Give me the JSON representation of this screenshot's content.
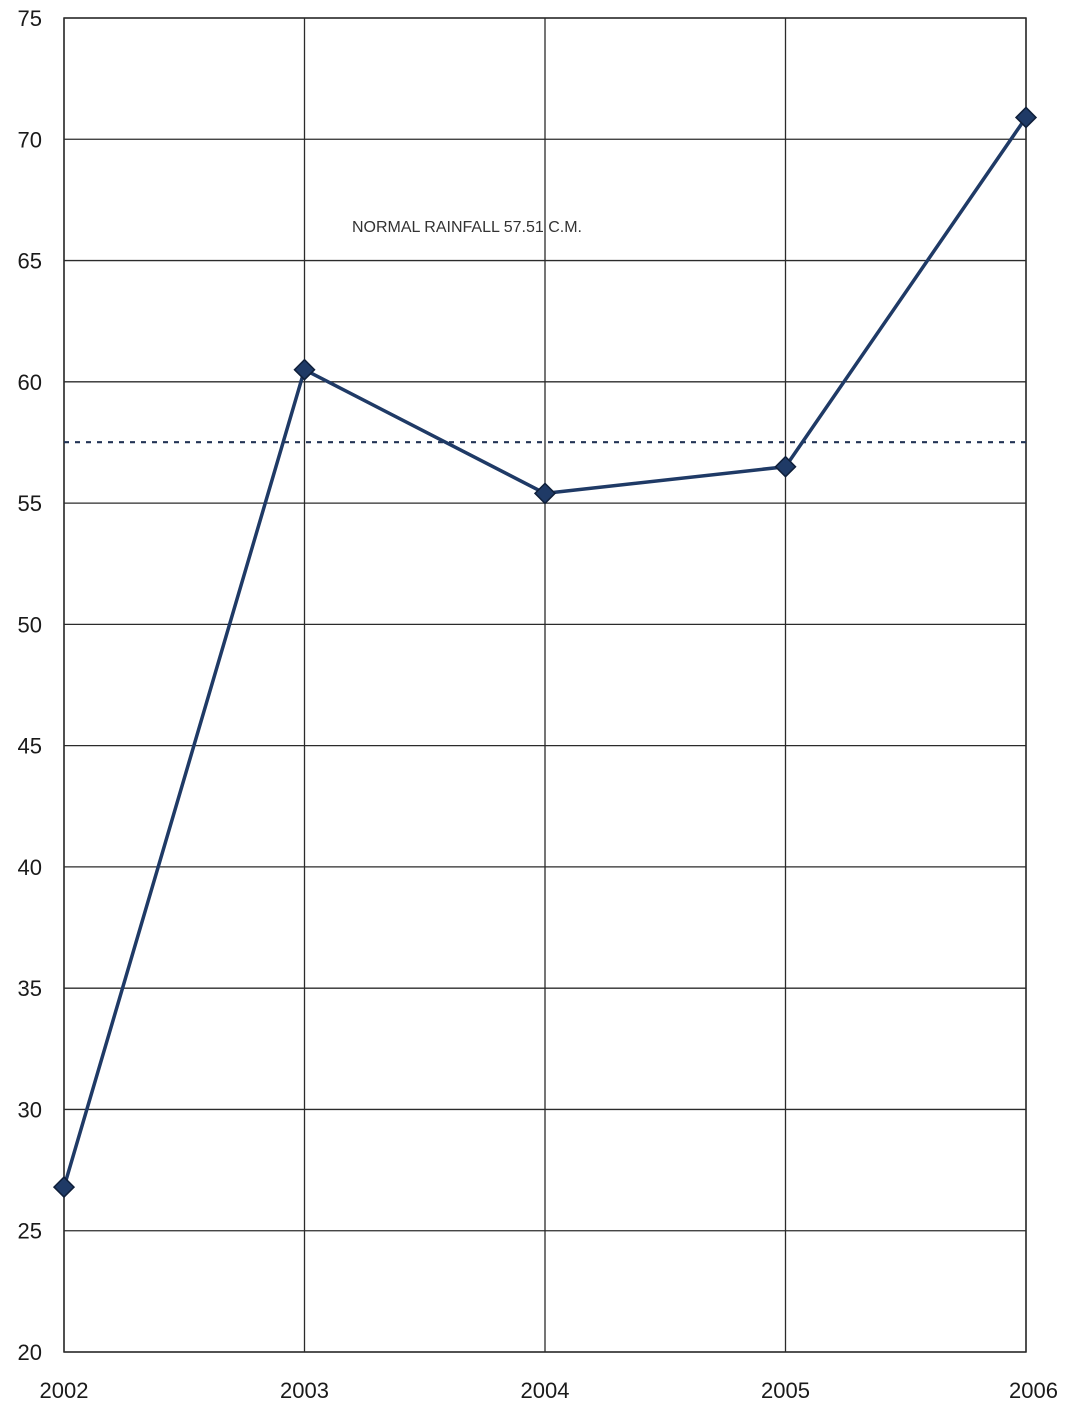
{
  "chart_data": {
    "type": "line",
    "title": "",
    "xlabel": "",
    "ylabel": "",
    "categories": [
      "2002",
      "2003",
      "2004",
      "2005",
      "2006"
    ],
    "ylim": [
      20,
      75
    ],
    "yticks": [
      20,
      25,
      30,
      35,
      40,
      45,
      50,
      55,
      60,
      65,
      70,
      75
    ],
    "grid": true,
    "series": [
      {
        "values": [
          26.8,
          60.5,
          55.4,
          56.5,
          70.9
        ],
        "marker": "diamond"
      }
    ],
    "reference_line": {
      "value": 57.51,
      "style": "dotted"
    },
    "annotation": "NORMAL RAINFALL 57.51 C.M.",
    "colors": {
      "series": "#1f3a66",
      "reference": "#223355"
    }
  }
}
